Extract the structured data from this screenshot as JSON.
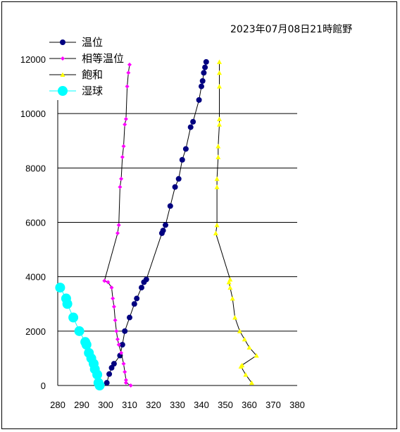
{
  "chart_data": {
    "type": "scatter",
    "title": "2023年07月08日21時館野",
    "xlabel": "",
    "ylabel": "",
    "xlim": [
      280,
      380
    ],
    "ylim": [
      0,
      12000
    ],
    "x_ticks": [
      "280",
      "290",
      "300",
      "310",
      "320",
      "330",
      "340",
      "350",
      "360",
      "370",
      "380"
    ],
    "y_ticks": [
      "0",
      "2000",
      "4000",
      "6000",
      "8000",
      "10000",
      "12000"
    ],
    "grid": "horizontal",
    "legend_position": "top-left",
    "series": [
      {
        "name": "温位",
        "color": "#000080",
        "marker": "circle",
        "values": [
          [
            300.5,
            100
          ],
          [
            301.5,
            420
          ],
          [
            302.5,
            650
          ],
          [
            303.5,
            800
          ],
          [
            306,
            1100
          ],
          [
            307,
            1500
          ],
          [
            308,
            2000
          ],
          [
            310,
            2500
          ],
          [
            312,
            3000
          ],
          [
            313,
            3200
          ],
          [
            315,
            3600
          ],
          [
            316,
            3800
          ],
          [
            317,
            3900
          ],
          [
            323.5,
            5600
          ],
          [
            324,
            5700
          ],
          [
            325,
            5900
          ],
          [
            327,
            6600
          ],
          [
            329,
            7300
          ],
          [
            330.5,
            7600
          ],
          [
            332,
            8300
          ],
          [
            333.5,
            8700
          ],
          [
            335.5,
            9500
          ],
          [
            336.5,
            9700
          ],
          [
            339,
            10500
          ],
          [
            340,
            11000
          ],
          [
            340.5,
            11200
          ],
          [
            341,
            11500
          ],
          [
            341.5,
            11700
          ],
          [
            342,
            11900
          ]
        ]
      },
      {
        "name": "相等温位",
        "color": "#ff00ff",
        "marker": "diamond",
        "values": [
          [
            310.5,
            0
          ],
          [
            308.5,
            100
          ],
          [
            308.5,
            200
          ],
          [
            308,
            500
          ],
          [
            307.5,
            800
          ],
          [
            306.5,
            1200
          ],
          [
            305.5,
            1500
          ],
          [
            305,
            1700
          ],
          [
            304.5,
            2000
          ],
          [
            304,
            2400
          ],
          [
            303.5,
            2900
          ],
          [
            303,
            3200
          ],
          [
            302.5,
            3600
          ],
          [
            301,
            3800
          ],
          [
            299.5,
            3850
          ],
          [
            305,
            5600
          ],
          [
            305.5,
            5900
          ],
          [
            306,
            7300
          ],
          [
            306.5,
            7600
          ],
          [
            307,
            8400
          ],
          [
            307.5,
            8800
          ],
          [
            308,
            9600
          ],
          [
            308.5,
            9800
          ],
          [
            309,
            11000
          ],
          [
            309.5,
            11500
          ],
          [
            310,
            11800
          ]
        ]
      },
      {
        "name": "飽和",
        "color": "#ffff00",
        "marker": "triangle",
        "values": [
          [
            361,
            100
          ],
          [
            358.5,
            400
          ],
          [
            356.5,
            700
          ],
          [
            357,
            750
          ],
          [
            363,
            1100
          ],
          [
            360,
            1400
          ],
          [
            358,
            1700
          ],
          [
            356,
            2000
          ],
          [
            354,
            2500
          ],
          [
            353,
            3200
          ],
          [
            352,
            3600
          ],
          [
            351.5,
            3800
          ],
          [
            352,
            3900
          ],
          [
            346,
            5600
          ],
          [
            346.5,
            5900
          ],
          [
            346.5,
            7300
          ],
          [
            346.5,
            7600
          ],
          [
            347,
            8400
          ],
          [
            347,
            8800
          ],
          [
            347.5,
            9600
          ],
          [
            347.5,
            9800
          ],
          [
            347.5,
            11000
          ],
          [
            347.5,
            11500
          ],
          [
            347.5,
            11900
          ]
        ]
      },
      {
        "name": "湿球",
        "color": "#00ffff",
        "marker": "circle-large",
        "values": [
          [
            297.5,
            0
          ],
          [
            297,
            100
          ],
          [
            296.5,
            400
          ],
          [
            295.5,
            600
          ],
          [
            295,
            800
          ],
          [
            294,
            1000
          ],
          [
            293,
            1200
          ],
          [
            292,
            1500
          ],
          [
            291.5,
            1600
          ],
          [
            289,
            2000
          ],
          [
            286.5,
            2500
          ],
          [
            284,
            3000
          ],
          [
            283.5,
            3200
          ],
          [
            281,
            3600
          ]
        ]
      }
    ]
  }
}
